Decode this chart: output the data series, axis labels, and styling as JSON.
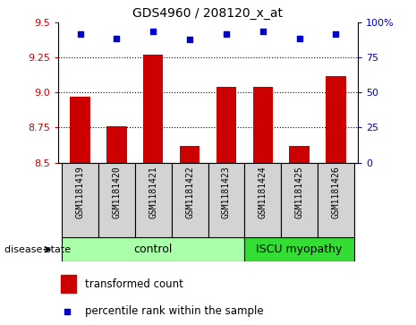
{
  "title": "GDS4960 / 208120_x_at",
  "samples": [
    "GSM1181419",
    "GSM1181420",
    "GSM1181421",
    "GSM1181422",
    "GSM1181423",
    "GSM1181424",
    "GSM1181425",
    "GSM1181426"
  ],
  "bar_values": [
    8.97,
    8.76,
    9.27,
    8.62,
    9.04,
    9.04,
    8.62,
    9.12
  ],
  "percentile_values": [
    9.42,
    9.39,
    9.44,
    9.38,
    9.42,
    9.44,
    9.39,
    9.42
  ],
  "ylim": [
    8.5,
    9.5
  ],
  "yticks_left": [
    8.5,
    8.75,
    9.0,
    9.25,
    9.5
  ],
  "yticks_right": [
    0,
    25,
    50,
    75,
    100
  ],
  "bar_color": "#cc0000",
  "dot_color": "#0000cc",
  "bg_color": "#d3d3d3",
  "control_color": "#aaffaa",
  "iscu_color": "#33dd33",
  "control_samples": 5,
  "iscu_samples": 3,
  "control_label": "control",
  "iscu_label": "ISCU myopathy",
  "disease_state_label": "disease state",
  "legend_bar_label": "transformed count",
  "legend_dot_label": "percentile rank within the sample",
  "dotted_grid": [
    8.75,
    9.0,
    9.25
  ],
  "bar_width": 0.55
}
